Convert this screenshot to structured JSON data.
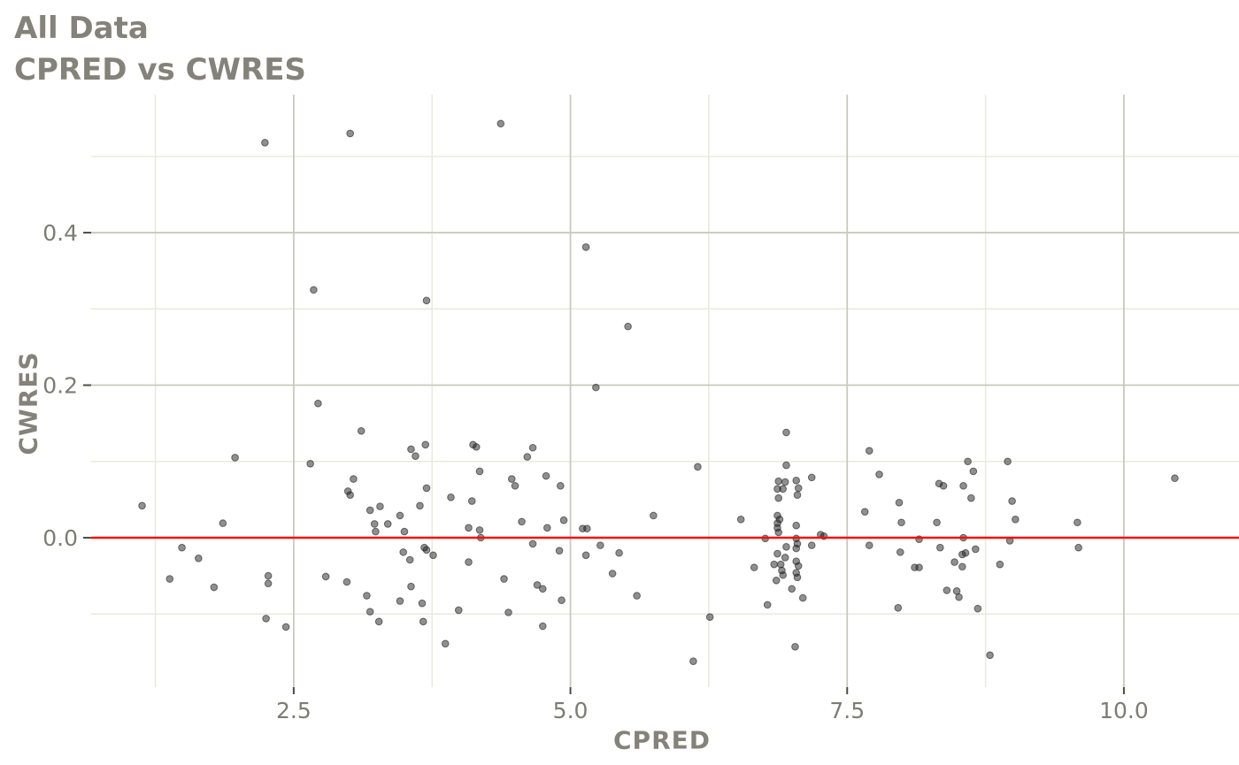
{
  "chart_data": {
    "type": "scatter",
    "title": "All Data",
    "subtitle": "CPRED vs CWRES",
    "xlabel": "CPRED",
    "ylabel": "CWRES",
    "xlim": [
      0.67,
      11.04
    ],
    "ylim": [
      -0.196,
      0.581
    ],
    "grid": true,
    "legend": "none",
    "x_ticks": [
      {
        "value": 2.5,
        "label": "2.5"
      },
      {
        "value": 5.0,
        "label": "5.0"
      },
      {
        "value": 7.5,
        "label": "7.5"
      },
      {
        "value": 10.0,
        "label": "10.0"
      }
    ],
    "y_ticks": [
      {
        "value": 0.4,
        "label": "0.4"
      },
      {
        "value": 0.2,
        "label": "0.2"
      },
      {
        "value": 0.0,
        "label": "0.0"
      }
    ],
    "x_minor": [
      1.25,
      3.75,
      6.25,
      8.75
    ],
    "y_minor": [
      0.5,
      0.3,
      0.1,
      -0.1
    ],
    "reference_line": {
      "y": 0.0,
      "color": "#fb0f06"
    },
    "colors": {
      "background": "#ffffff",
      "grid_major": "#c9c9bd",
      "grid_minor": "#e9e9dd",
      "point": "#1f1f1f",
      "point_opacity": 0.5,
      "refline": "#fb0f06",
      "title_text": "#84837a",
      "tick_text": "#7d7c74",
      "tick_mark": "#4c4c46"
    },
    "points": [
      [
        2.24,
        0.518
      ],
      [
        3.01,
        0.53
      ],
      [
        4.37,
        0.543
      ],
      [
        5.14,
        0.381
      ],
      [
        2.68,
        0.325
      ],
      [
        3.7,
        0.311
      ],
      [
        5.52,
        0.277
      ],
      [
        5.23,
        0.197
      ],
      [
        2.72,
        0.176
      ],
      [
        3.11,
        0.14
      ],
      [
        1.97,
        0.105
      ],
      [
        2.65,
        0.097
      ],
      [
        3.04,
        0.077
      ],
      [
        2.99,
        0.061
      ],
      [
        3.01,
        0.056
      ],
      [
        1.13,
        0.042
      ],
      [
        3.19,
        0.036
      ],
      [
        3.28,
        0.041
      ],
      [
        1.86,
        0.019
      ],
      [
        3.23,
        0.018
      ],
      [
        3.24,
        0.008
      ],
      [
        1.49,
        -0.013
      ],
      [
        1.64,
        -0.027
      ],
      [
        1.38,
        -0.054
      ],
      [
        1.78,
        -0.065
      ],
      [
        2.27,
        -0.05
      ],
      [
        2.27,
        -0.06
      ],
      [
        2.79,
        -0.051
      ],
      [
        2.98,
        -0.058
      ],
      [
        3.16,
        -0.076
      ],
      [
        3.19,
        -0.097
      ],
      [
        2.25,
        -0.106
      ],
      [
        2.43,
        -0.117
      ],
      [
        3.27,
        -0.11
      ],
      [
        3.69,
        0.122
      ],
      [
        3.56,
        0.116
      ],
      [
        3.6,
        0.107
      ],
      [
        4.12,
        0.122
      ],
      [
        4.15,
        0.119
      ],
      [
        4.66,
        0.118
      ],
      [
        4.61,
        0.106
      ],
      [
        4.18,
        0.087
      ],
      [
        4.47,
        0.077
      ],
      [
        4.5,
        0.068
      ],
      [
        4.78,
        0.081
      ],
      [
        4.91,
        0.068
      ],
      [
        3.7,
        0.065
      ],
      [
        3.92,
        0.053
      ],
      [
        4.11,
        0.048
      ],
      [
        3.64,
        0.042
      ],
      [
        3.46,
        0.029
      ],
      [
        3.35,
        0.018
      ],
      [
        3.5,
        0.008
      ],
      [
        4.56,
        0.021
      ],
      [
        4.94,
        0.023
      ],
      [
        4.79,
        0.013
      ],
      [
        4.08,
        0.013
      ],
      [
        4.18,
        0.01
      ],
      [
        4.19,
        0.0
      ],
      [
        5.11,
        0.012
      ],
      [
        5.15,
        0.012
      ],
      [
        5.75,
        0.029
      ],
      [
        4.66,
        -0.008
      ],
      [
        3.68,
        -0.013
      ],
      [
        3.7,
        -0.016
      ],
      [
        3.49,
        -0.019
      ],
      [
        3.76,
        -0.023
      ],
      [
        4.9,
        -0.017
      ],
      [
        5.27,
        -0.01
      ],
      [
        5.14,
        -0.023
      ],
      [
        3.55,
        -0.029
      ],
      [
        4.08,
        -0.032
      ],
      [
        5.44,
        -0.02
      ],
      [
        5.38,
        -0.047
      ],
      [
        4.4,
        -0.054
      ],
      [
        4.7,
        -0.062
      ],
      [
        4.75,
        -0.067
      ],
      [
        3.56,
        -0.064
      ],
      [
        4.92,
        -0.082
      ],
      [
        5.6,
        -0.076
      ],
      [
        3.46,
        -0.083
      ],
      [
        3.66,
        -0.086
      ],
      [
        3.99,
        -0.095
      ],
      [
        4.44,
        -0.098
      ],
      [
        3.67,
        -0.11
      ],
      [
        4.75,
        -0.116
      ],
      [
        3.87,
        -0.139
      ],
      [
        6.95,
        0.138
      ],
      [
        6.95,
        0.095
      ],
      [
        6.88,
        0.074
      ],
      [
        6.94,
        0.073
      ],
      [
        6.87,
        0.064
      ],
      [
        6.92,
        0.064
      ],
      [
        7.04,
        0.075
      ],
      [
        7.06,
        0.065
      ],
      [
        7.05,
        0.056
      ],
      [
        6.88,
        0.052
      ],
      [
        6.87,
        0.029
      ],
      [
        6.89,
        0.024
      ],
      [
        6.87,
        0.019
      ],
      [
        6.87,
        0.013
      ],
      [
        6.88,
        0.007
      ],
      [
        7.04,
        0.016
      ],
      [
        7.04,
        -0.001
      ],
      [
        7.05,
        -0.008
      ],
      [
        7.04,
        -0.014
      ],
      [
        6.95,
        -0.012
      ],
      [
        6.87,
        -0.021
      ],
      [
        6.94,
        -0.026
      ],
      [
        6.84,
        -0.035
      ],
      [
        6.9,
        -0.035
      ],
      [
        7.04,
        -0.031
      ],
      [
        7.06,
        -0.037
      ],
      [
        6.91,
        -0.043
      ],
      [
        6.92,
        -0.049
      ],
      [
        7.04,
        -0.046
      ],
      [
        7.05,
        -0.052
      ],
      [
        6.86,
        -0.056
      ],
      [
        7.0,
        -0.067
      ],
      [
        7.1,
        -0.079
      ],
      [
        6.76,
        -0.001
      ],
      [
        7.18,
        0.079
      ],
      [
        7.26,
        0.004
      ],
      [
        7.29,
        0.002
      ],
      [
        7.18,
        -0.01
      ],
      [
        6.66,
        -0.039
      ],
      [
        6.54,
        0.024
      ],
      [
        6.78,
        -0.088
      ],
      [
        6.26,
        -0.104
      ],
      [
        6.15,
        0.093
      ],
      [
        6.11,
        -0.162
      ],
      [
        7.03,
        -0.143
      ],
      [
        7.7,
        0.114
      ],
      [
        7.79,
        0.083
      ],
      [
        7.97,
        0.046
      ],
      [
        7.66,
        0.034
      ],
      [
        7.99,
        0.02
      ],
      [
        7.7,
        -0.01
      ],
      [
        8.15,
        -0.002
      ],
      [
        7.98,
        -0.019
      ],
      [
        8.11,
        -0.039
      ],
      [
        8.15,
        -0.039
      ],
      [
        7.96,
        -0.092
      ],
      [
        8.33,
        0.071
      ],
      [
        8.37,
        0.068
      ],
      [
        8.55,
        0.068
      ],
      [
        8.62,
        0.052
      ],
      [
        8.59,
        0.1
      ],
      [
        8.64,
        0.087
      ],
      [
        8.55,
        0.0
      ],
      [
        8.66,
        -0.015
      ],
      [
        8.31,
        0.02
      ],
      [
        8.34,
        -0.013
      ],
      [
        8.54,
        -0.022
      ],
      [
        8.57,
        -0.02
      ],
      [
        8.47,
        -0.032
      ],
      [
        8.54,
        -0.038
      ],
      [
        8.4,
        -0.069
      ],
      [
        8.49,
        -0.07
      ],
      [
        8.51,
        -0.078
      ],
      [
        8.68,
        -0.093
      ],
      [
        8.95,
        0.1
      ],
      [
        8.99,
        0.048
      ],
      [
        9.02,
        0.024
      ],
      [
        9.58,
        0.02
      ],
      [
        8.97,
        -0.004
      ],
      [
        9.59,
        -0.013
      ],
      [
        8.88,
        -0.035
      ],
      [
        8.79,
        -0.154
      ],
      [
        10.46,
        0.078
      ]
    ]
  }
}
